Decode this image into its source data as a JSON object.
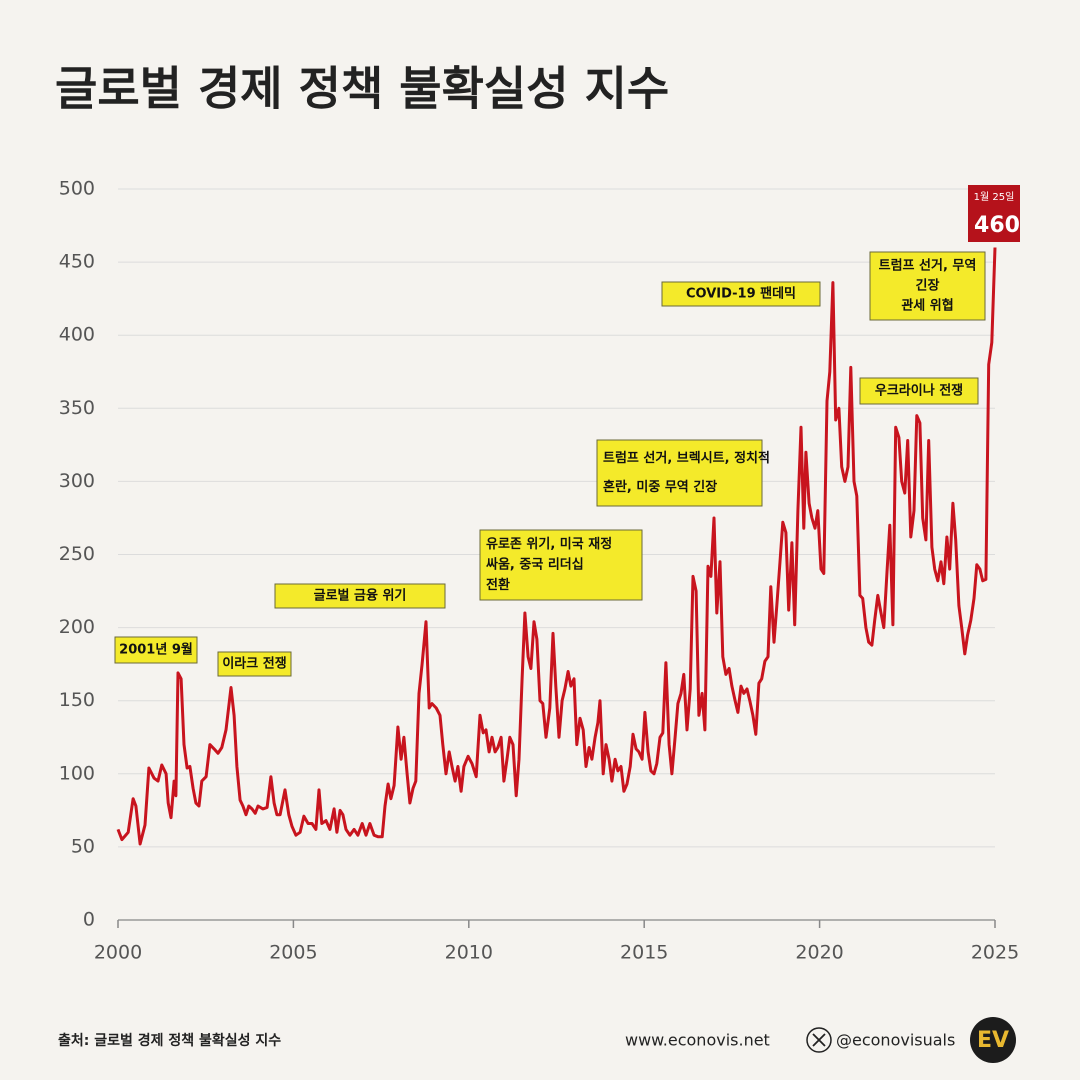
{
  "chart_data": {
    "type": "line",
    "title": "글로벌 경제 정책 불확실성 지수",
    "x": [
      2000.0,
      2000.11,
      2000.29,
      2000.43,
      2000.51,
      2000.63,
      2000.77,
      2000.88,
      2001.03,
      2001.14,
      2001.25,
      2001.37,
      2001.43,
      2001.51,
      2001.6,
      2001.65,
      2001.71,
      2001.8,
      2001.88,
      2001.97,
      2002.05,
      2002.14,
      2002.22,
      2002.31,
      2002.39,
      2002.51,
      2002.62,
      2002.74,
      2002.85,
      2002.96,
      2003.08,
      2003.22,
      2003.31,
      2003.39,
      2003.48,
      2003.56,
      2003.65,
      2003.73,
      2003.82,
      2003.91,
      2003.99,
      2004.13,
      2004.25,
      2004.36,
      2004.45,
      2004.53,
      2004.62,
      2004.76,
      2004.87,
      2004.96,
      2005.07,
      2005.19,
      2005.3,
      2005.42,
      2005.53,
      2005.64,
      2005.73,
      2005.81,
      2005.93,
      2006.04,
      2006.16,
      2006.24,
      2006.33,
      2006.41,
      2006.5,
      2006.61,
      2006.73,
      2006.84,
      2006.96,
      2007.07,
      2007.18,
      2007.3,
      2007.41,
      2007.53,
      2007.61,
      2007.7,
      2007.78,
      2007.87,
      2007.98,
      2008.07,
      2008.15,
      2008.24,
      2008.32,
      2008.41,
      2008.49,
      2008.58,
      2008.67,
      2008.78,
      2008.87,
      2008.95,
      2009.07,
      2009.18,
      2009.26,
      2009.35,
      2009.44,
      2009.52,
      2009.61,
      2009.69,
      2009.78,
      2009.86,
      2009.98,
      2010.09,
      2010.21,
      2010.32,
      2010.41,
      2010.49,
      2010.58,
      2010.66,
      2010.75,
      2010.83,
      2010.92,
      2011.0,
      2011.09,
      2011.17,
      2011.26,
      2011.35,
      2011.43,
      2011.52,
      2011.6,
      2011.69,
      2011.77,
      2011.86,
      2011.94,
      2012.03,
      2012.11,
      2012.2,
      2012.31,
      2012.4,
      2012.48,
      2012.57,
      2012.66,
      2012.74,
      2012.83,
      2012.91,
      2013.0,
      2013.08,
      2013.17,
      2013.26,
      2013.34,
      2013.43,
      2013.51,
      2013.6,
      2013.68,
      2013.74,
      2013.83,
      2013.91,
      2014.0,
      2014.08,
      2014.17,
      2014.25,
      2014.34,
      2014.42,
      2014.51,
      2014.6,
      2014.68,
      2014.77,
      2014.85,
      2014.94,
      2015.02,
      2015.11,
      2015.19,
      2015.28,
      2015.36,
      2015.45,
      2015.53,
      2015.62,
      2015.71,
      2015.79,
      2015.88,
      2015.96,
      2016.05,
      2016.13,
      2016.22,
      2016.31,
      2016.39,
      2016.48,
      2016.56,
      2016.65,
      2016.73,
      2016.82,
      2016.9,
      2016.99,
      2017.07,
      2017.16,
      2017.24,
      2017.33,
      2017.42,
      2017.5,
      2017.59,
      2017.67,
      2017.76,
      2017.84,
      2017.93,
      2018.01,
      2018.1,
      2018.18,
      2018.27,
      2018.35,
      2018.44,
      2018.53,
      2018.61,
      2018.7,
      2018.78,
      2018.87,
      2018.95,
      2019.04,
      2019.12,
      2019.21,
      2019.29,
      2019.38,
      2019.47,
      2019.55,
      2019.61,
      2019.7,
      2019.78,
      2019.87,
      2019.95,
      2020.04,
      2020.12,
      2020.21,
      2020.29,
      2020.38,
      2020.46,
      2020.55,
      2020.63,
      2020.72,
      2020.81,
      2020.89,
      2020.98,
      2021.06,
      2021.15,
      2021.23,
      2021.32,
      2021.4,
      2021.49,
      2021.57,
      2021.66,
      2021.75,
      2021.83,
      2021.92,
      2022.0,
      2022.09,
      2022.17,
      2022.26,
      2022.34,
      2022.43,
      2022.51,
      2022.6,
      2022.69,
      2022.77,
      2022.86,
      2022.94,
      2023.03,
      2023.11,
      2023.2,
      2023.28,
      2023.37,
      2023.46,
      2023.54,
      2023.63,
      2023.71,
      2023.8,
      2023.88,
      2023.97,
      2024.05,
      2024.14,
      2024.22,
      2024.31,
      2024.4,
      2024.48,
      2024.57,
      2024.65,
      2024.74,
      2024.82,
      2024.91,
      2025.0
    ],
    "values": [
      62,
      55,
      60,
      83,
      78,
      52,
      65,
      104,
      97,
      95,
      106,
      100,
      80,
      70,
      95,
      85,
      169,
      165,
      120,
      104,
      105,
      90,
      80,
      78,
      95,
      98,
      120,
      117,
      114,
      118,
      130,
      159,
      140,
      105,
      82,
      78,
      72,
      78,
      76,
      73,
      78,
      76,
      77,
      98,
      80,
      72,
      72,
      89,
      72,
      64,
      58,
      60,
      71,
      66,
      66,
      62,
      89,
      66,
      68,
      62,
      76,
      60,
      75,
      72,
      62,
      58,
      62,
      58,
      66,
      58,
      66,
      58,
      57,
      57,
      78,
      93,
      83,
      92,
      132,
      110,
      125,
      100,
      80,
      90,
      95,
      155,
      175,
      204,
      145,
      148,
      145,
      140,
      120,
      100,
      115,
      105,
      95,
      105,
      88,
      105,
      112,
      107,
      98,
      140,
      128,
      130,
      115,
      125,
      115,
      118,
      125,
      95,
      110,
      125,
      120,
      85,
      110,
      165,
      210,
      180,
      172,
      204,
      192,
      150,
      148,
      125,
      145,
      196,
      160,
      125,
      150,
      158,
      170,
      160,
      165,
      120,
      138,
      130,
      105,
      118,
      110,
      125,
      135,
      150,
      100,
      120,
      110,
      95,
      110,
      102,
      105,
      88,
      93,
      105,
      127,
      117,
      115,
      110,
      142,
      115,
      102,
      100,
      107,
      125,
      128,
      176,
      120,
      100,
      125,
      148,
      155,
      168,
      130,
      158,
      235,
      225,
      140,
      155,
      130,
      242,
      235,
      275,
      210,
      245,
      180,
      168,
      172,
      160,
      150,
      142,
      160,
      155,
      158,
      150,
      140,
      127,
      162,
      165,
      177,
      180,
      228,
      190,
      215,
      245,
      272,
      265,
      212,
      258,
      202,
      280,
      337,
      268,
      320,
      285,
      275,
      268,
      280,
      240,
      237,
      355,
      375,
      436,
      342,
      350,
      310,
      300,
      310,
      378,
      300,
      290,
      222,
      220,
      200,
      190,
      188,
      205,
      222,
      210,
      200,
      238,
      270,
      202,
      337,
      330,
      300,
      292,
      328,
      262,
      280,
      345,
      340,
      275,
      260,
      328,
      255,
      240,
      232,
      245,
      230,
      262,
      240,
      285,
      260,
      215,
      200,
      182,
      195,
      205,
      220,
      243,
      240,
      232,
      233,
      380,
      395,
      460
    ],
    "color": "#c8141e",
    "xlim": [
      2000,
      2025
    ],
    "xticks": [
      2000,
      2005,
      2010,
      2015,
      2020,
      2025
    ],
    "ylim": [
      0,
      500
    ],
    "yticks": [
      0,
      50,
      100,
      150,
      200,
      250,
      300,
      350,
      400,
      450,
      500
    ],
    "grid": true,
    "annotations": [
      {
        "lines": [
          "2001년 9월"
        ]
      },
      {
        "lines": [
          "이라크 전쟁"
        ]
      },
      {
        "lines": [
          "글로벌 금융 위기"
        ]
      },
      {
        "lines": [
          "유로존 위기, 미국 재정",
          "싸움, 중국 리더십",
          "전환"
        ]
      },
      {
        "lines": [
          "트럼프 선거, 브렉시트, 정치적",
          "혼란, 미중 무역 긴장"
        ]
      },
      {
        "lines": [
          "COVID-19 팬데믹"
        ]
      },
      {
        "lines": [
          "우크라이나 전쟁"
        ]
      },
      {
        "lines": [
          "트럼프 선거, 무역",
          "긴장",
          "관세 위협"
        ]
      }
    ],
    "callout": {
      "label": "1월 25일",
      "value": 460
    }
  },
  "footer": {
    "source": "출처: 글로벌 경제 정책 불확실성 지수",
    "website": "www.econovis.net",
    "handle": "@econovisuals",
    "logo": "EV"
  }
}
